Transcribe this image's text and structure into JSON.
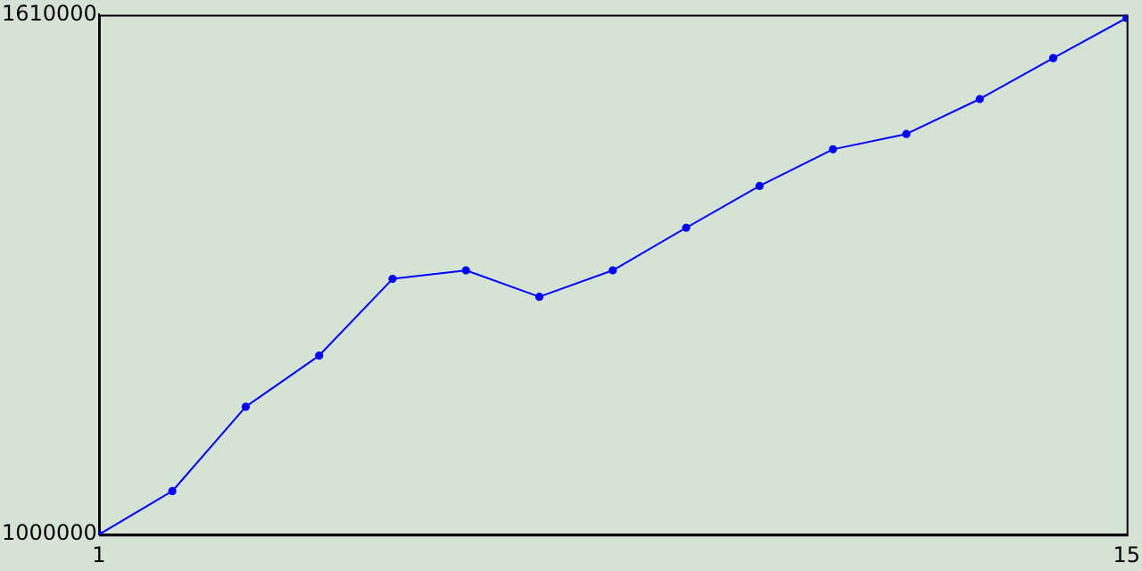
{
  "chart_data": {
    "type": "line",
    "x": [
      1,
      2,
      3,
      4,
      5,
      6,
      7,
      8,
      9,
      10,
      11,
      12,
      13,
      14,
      15
    ],
    "series": [
      {
        "color": "#0000ff",
        "values": [
          1000000,
          1051000,
          1150000,
          1210000,
          1300000,
          1310000,
          1279000,
          1310000,
          1360000,
          1409000,
          1452000,
          1470000,
          1511000,
          1559000,
          1606000
        ]
      }
    ],
    "xlim": [
      1,
      15
    ],
    "xticks": [
      1,
      15
    ],
    "ylim": [
      1000000,
      1610000
    ],
    "yticks": [
      1000000,
      1610000
    ],
    "grid": false,
    "legend": false,
    "marker": "circle",
    "line_style": "solid"
  }
}
